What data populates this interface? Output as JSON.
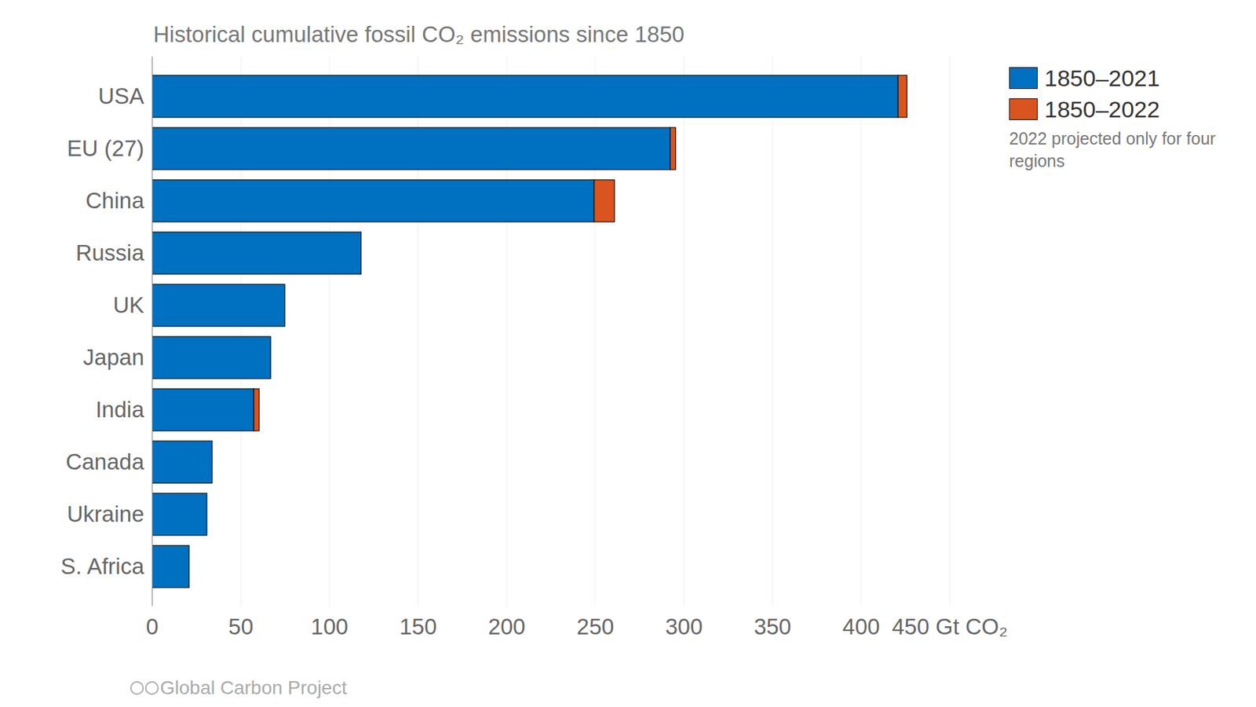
{
  "chart_data": {
    "type": "bar",
    "orientation": "horizontal",
    "stacked": true,
    "title": "Historical cumulative fossil CO₂ emissions since 1850",
    "categories": [
      "USA",
      "EU (27)",
      "China",
      "Russia",
      "UK",
      "Japan",
      "India",
      "Canada",
      "Ukraine",
      "S. Africa"
    ],
    "series": [
      {
        "name": "1850–2021",
        "color": "#0070c0",
        "values": [
          421,
          292.5,
          249.5,
          118,
          75,
          67,
          57.5,
          34,
          31,
          21
        ]
      },
      {
        "name": "1850–2022",
        "color": "#d9541e",
        "values": [
          5,
          3,
          11.5,
          null,
          null,
          null,
          3,
          null,
          null,
          null
        ]
      }
    ],
    "xlim": [
      0,
      450
    ],
    "xticks": [
      0,
      50,
      100,
      150,
      200,
      250,
      300,
      350,
      400,
      {
        "value": 450,
        "label": "450 Gt CO₂"
      }
    ],
    "grid": true,
    "legend": "top-right",
    "annotations": [
      "2022 projected only for four regions"
    ],
    "caption": "Global Carbon Project"
  }
}
